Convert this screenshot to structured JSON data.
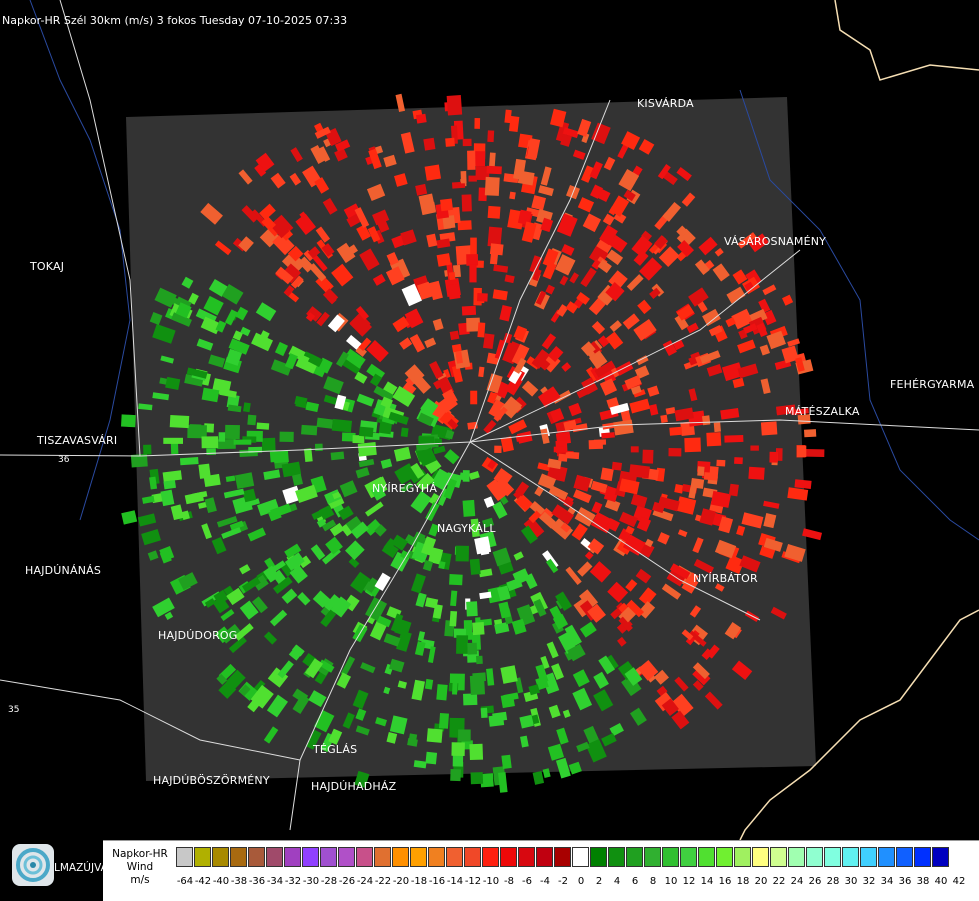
{
  "title": "Napkor-HR Szél 30km (m/s) 3 fokos Tuesday 07-10-2025 07:33",
  "cities": [
    {
      "id": "kisvarda",
      "label": "KISVÁRDA"
    },
    {
      "id": "tokaj",
      "label": "TOKAJ"
    },
    {
      "id": "vasarosnameny",
      "label": "VÁSÁROSNAMÉNY"
    },
    {
      "id": "fehergyarmat",
      "label": "FEHÉRGYARMA"
    },
    {
      "id": "mateszalka",
      "label": "MÁTÉSZALKA"
    },
    {
      "id": "tiszavasvari",
      "label": "TISZAVASVÁRI"
    },
    {
      "id": "nyiregyhaza",
      "label": "NYÍREGYHÁ"
    },
    {
      "id": "nagykallo",
      "label": "NAGYKÁLL"
    },
    {
      "id": "hajdunanas",
      "label": "HAJDÚNÁNÁS"
    },
    {
      "id": "nyirbator",
      "label": "NYÍRBÁTOR"
    },
    {
      "id": "hajdudorog",
      "label": "HAJDÚDOROG"
    },
    {
      "id": "teglas",
      "label": "TÉGLÁS"
    },
    {
      "id": "hajduboszormeny",
      "label": "HAJDÚBÖSZÖRMÉNY"
    },
    {
      "id": "hajduhadhaz",
      "label": "HAJDÚHADHÁZ"
    },
    {
      "id": "almazujvar",
      "label": "LMAZÚJVÁR"
    }
  ],
  "road_numbers": [
    "36",
    "35"
  ],
  "legend": {
    "line1": "Napkor-HR",
    "line2": "Wind",
    "line3": "m/s",
    "values": [
      -64,
      -42,
      -40,
      -38,
      -36,
      -34,
      -32,
      -30,
      -28,
      -26,
      -24,
      -22,
      -20,
      -18,
      -16,
      -14,
      -12,
      -10,
      -8,
      -6,
      -4,
      -2,
      0,
      2,
      4,
      6,
      8,
      10,
      12,
      14,
      16,
      18,
      20,
      22,
      24,
      26,
      28,
      30,
      32,
      34,
      36,
      38,
      40,
      42
    ],
    "colors": [
      "#c8c8c8",
      "#b0b000",
      "#a88a00",
      "#a86a10",
      "#a85a3a",
      "#a04a6a",
      "#a040c0",
      "#9040ff",
      "#a050d0",
      "#b050c8",
      "#c8508a",
      "#e07030",
      "#ff9000",
      "#ffa000",
      "#f08020",
      "#f06030",
      "#f04828",
      "#ff2010",
      "#ee0808",
      "#d80810",
      "#c00010",
      "#a80000",
      "#ffffff",
      "#008000",
      "#109010",
      "#20a020",
      "#30b030",
      "#30c030",
      "#40d040",
      "#50e030",
      "#70f030",
      "#a0f060",
      "#ffff80",
      "#d0ff90",
      "#a0ffb0",
      "#90ffd0",
      "#80ffe0",
      "#60f0f0",
      "#40d0ff",
      "#2090ff",
      "#1060ff",
      "#0030ff",
      "#0000c0"
    ]
  },
  "colors": {
    "background": "#000000",
    "radar_area": "#333333",
    "approaching": "#22cc22",
    "receding": "#ee1111",
    "border_river": "#1e3a8a",
    "country_border": "#f5deb3"
  }
}
